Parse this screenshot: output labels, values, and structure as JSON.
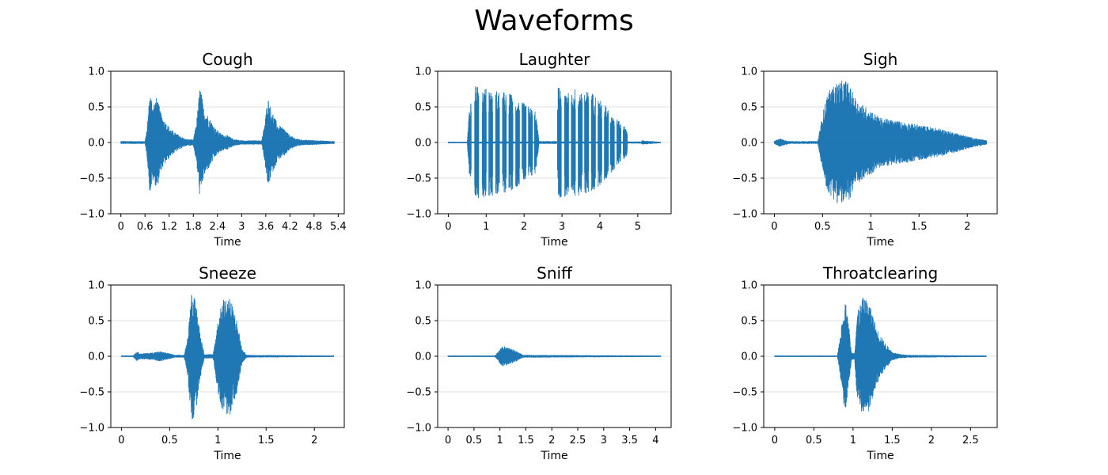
{
  "figure": {
    "title": "Waveforms"
  },
  "colors": {
    "wave": "#1f77b4",
    "grid": "#d9d9d9",
    "frame": "#000000"
  },
  "chart_data": [
    {
      "type": "line",
      "title": "Cough",
      "xlabel": "Time",
      "ylabel": "",
      "duration": 5.3,
      "xlim": [
        -0.25,
        5.55
      ],
      "ylim": [
        -1.0,
        1.0
      ],
      "xticks": [
        0,
        0.6,
        1.2,
        1.8,
        2.4,
        3,
        3.6,
        4.2,
        4.8,
        5.4
      ],
      "xtick_labels": [
        "0",
        "0.6",
        "1.2",
        "1.8",
        "2.4",
        "3",
        "3.6",
        "4.2",
        "4.8",
        "5.4"
      ],
      "yticks": [
        -1.0,
        -0.5,
        0.0,
        0.5,
        1.0
      ],
      "ytick_labels": [
        "−1.0",
        "−0.5",
        "0.0",
        "0.5",
        "1.0"
      ],
      "grid": "y",
      "envelope": [
        [
          0,
          0.02
        ],
        [
          0.6,
          0.02
        ],
        [
          0.65,
          0.2
        ],
        [
          0.72,
          0.72
        ],
        [
          0.8,
          0.55
        ],
        [
          0.9,
          0.65
        ],
        [
          1.0,
          0.4
        ],
        [
          1.1,
          0.3
        ],
        [
          1.25,
          0.18
        ],
        [
          1.4,
          0.12
        ],
        [
          1.6,
          0.05
        ],
        [
          1.8,
          0.04
        ],
        [
          1.88,
          0.3
        ],
        [
          1.97,
          0.82
        ],
        [
          2.05,
          0.5
        ],
        [
          2.2,
          0.35
        ],
        [
          2.35,
          0.2
        ],
        [
          2.5,
          0.12
        ],
        [
          2.65,
          0.1
        ],
        [
          2.8,
          0.05
        ],
        [
          3.0,
          0.03
        ],
        [
          3.5,
          0.03
        ],
        [
          3.58,
          0.3
        ],
        [
          3.65,
          0.65
        ],
        [
          3.75,
          0.45
        ],
        [
          3.9,
          0.25
        ],
        [
          4.05,
          0.2
        ],
        [
          4.2,
          0.1
        ],
        [
          4.35,
          0.06
        ],
        [
          4.5,
          0.04
        ],
        [
          5.3,
          0.02
        ]
      ]
    },
    {
      "type": "line",
      "title": "Laughter",
      "xlabel": "Time",
      "ylabel": "",
      "duration": 5.6,
      "xlim": [
        -0.28,
        5.88
      ],
      "ylim": [
        -1.0,
        1.0
      ],
      "xticks": [
        0,
        1,
        2,
        3,
        4,
        5
      ],
      "xtick_labels": [
        "0",
        "1",
        "2",
        "3",
        "4",
        "5"
      ],
      "yticks": [
        -1.0,
        -0.5,
        0.0,
        0.5,
        1.0
      ],
      "ytick_labels": [
        "−1.0",
        "−0.5",
        "0.0",
        "0.5",
        "1.0"
      ],
      "grid": "y",
      "envelope": [
        [
          0,
          0.01
        ],
        [
          0.5,
          0.01
        ],
        [
          0.55,
          0.45
        ],
        [
          0.65,
          0.8
        ],
        [
          1.1,
          0.75
        ],
        [
          1.6,
          0.7
        ],
        [
          2.0,
          0.55
        ],
        [
          2.3,
          0.45
        ],
        [
          2.4,
          0.02
        ],
        [
          2.85,
          0.02
        ],
        [
          2.9,
          0.78
        ],
        [
          3.4,
          0.75
        ],
        [
          3.8,
          0.7
        ],
        [
          4.2,
          0.5
        ],
        [
          4.5,
          0.3
        ],
        [
          4.7,
          0.2
        ],
        [
          4.85,
          0.04
        ],
        [
          5.6,
          0.01
        ]
      ],
      "bursts": [
        0.55,
        0.75,
        0.95,
        1.12,
        1.3,
        1.48,
        1.65,
        1.83,
        2.0,
        2.17,
        2.33,
        2.93,
        3.12,
        3.3,
        3.48,
        3.65,
        3.83,
        4.0,
        4.17,
        4.33,
        4.5,
        4.67
      ]
    },
    {
      "type": "line",
      "title": "Sigh",
      "xlabel": "Time",
      "ylabel": "",
      "duration": 2.2,
      "xlim": [
        -0.11,
        2.31
      ],
      "ylim": [
        -1.0,
        1.0
      ],
      "xticks": [
        0,
        0.5,
        1,
        1.5,
        2
      ],
      "xtick_labels": [
        "0",
        "0.5",
        "1",
        "1.5",
        "2"
      ],
      "yticks": [
        -1.0,
        -0.5,
        0.0,
        0.5,
        1.0
      ],
      "ytick_labels": [
        "−1.0",
        "−0.5",
        "0.0",
        "0.5",
        "1.0"
      ],
      "grid": "y",
      "envelope": [
        [
          0,
          0.02
        ],
        [
          0.05,
          0.06
        ],
        [
          0.15,
          0.02
        ],
        [
          0.45,
          0.02
        ],
        [
          0.5,
          0.4
        ],
        [
          0.55,
          0.7
        ],
        [
          0.65,
          0.85
        ],
        [
          0.75,
          0.88
        ],
        [
          0.85,
          0.6
        ],
        [
          0.95,
          0.5
        ],
        [
          1.1,
          0.35
        ],
        [
          1.3,
          0.3
        ],
        [
          1.5,
          0.25
        ],
        [
          1.7,
          0.2
        ],
        [
          1.9,
          0.13
        ],
        [
          2.05,
          0.07
        ],
        [
          2.2,
          0.03
        ]
      ]
    },
    {
      "type": "line",
      "title": "Sneeze",
      "xlabel": "Time",
      "ylabel": "",
      "duration": 2.2,
      "xlim": [
        -0.11,
        2.31
      ],
      "ylim": [
        -1.0,
        1.0
      ],
      "xticks": [
        0,
        0.5,
        1,
        1.5,
        2
      ],
      "xtick_labels": [
        "0",
        "0.5",
        "1",
        "1.5",
        "2"
      ],
      "yticks": [
        -1.0,
        -0.5,
        0.0,
        0.5,
        1.0
      ],
      "ytick_labels": [
        "−1.0",
        "−0.5",
        "0.0",
        "0.5",
        "1.0"
      ],
      "grid": "y",
      "envelope": [
        [
          0,
          0.01
        ],
        [
          0.12,
          0.01
        ],
        [
          0.16,
          0.07
        ],
        [
          0.2,
          0.04
        ],
        [
          0.3,
          0.05
        ],
        [
          0.4,
          0.07
        ],
        [
          0.5,
          0.04
        ],
        [
          0.55,
          0.02
        ],
        [
          0.65,
          0.02
        ],
        [
          0.68,
          0.2
        ],
        [
          0.73,
          0.95
        ],
        [
          0.78,
          0.7
        ],
        [
          0.82,
          0.3
        ],
        [
          0.86,
          0.03
        ],
        [
          0.95,
          0.03
        ],
        [
          1.0,
          0.5
        ],
        [
          1.05,
          0.8
        ],
        [
          1.12,
          0.85
        ],
        [
          1.2,
          0.5
        ],
        [
          1.25,
          0.1
        ],
        [
          1.3,
          0.02
        ],
        [
          2.2,
          0.01
        ]
      ]
    },
    {
      "type": "line",
      "title": "Sniff",
      "xlabel": "Time",
      "ylabel": "",
      "duration": 4.1,
      "xlim": [
        -0.2,
        4.3
      ],
      "ylim": [
        -1.0,
        1.0
      ],
      "xticks": [
        0,
        0.5,
        1,
        1.5,
        2,
        2.5,
        3,
        3.5,
        4
      ],
      "xtick_labels": [
        "0",
        "0.5",
        "1",
        "1.5",
        "2",
        "2.5",
        "3",
        "3.5",
        "4"
      ],
      "yticks": [
        -1.0,
        -0.5,
        0.0,
        0.5,
        1.0
      ],
      "ytick_labels": [
        "−1.0",
        "−0.5",
        "0.0",
        "0.5",
        "1.0"
      ],
      "grid": "y",
      "envelope": [
        [
          0,
          0.01
        ],
        [
          0.9,
          0.01
        ],
        [
          0.95,
          0.05
        ],
        [
          1.05,
          0.15
        ],
        [
          1.15,
          0.12
        ],
        [
          1.25,
          0.1
        ],
        [
          1.35,
          0.06
        ],
        [
          1.45,
          0.02
        ],
        [
          4.1,
          0.01
        ]
      ]
    },
    {
      "type": "line",
      "title": "Throatclearing",
      "xlabel": "Time",
      "ylabel": "",
      "duration": 2.7,
      "xlim": [
        -0.14,
        2.84
      ],
      "ylim": [
        -1.0,
        1.0
      ],
      "xticks": [
        0,
        0.5,
        1,
        1.5,
        2,
        2.5
      ],
      "xtick_labels": [
        "0",
        "0.5",
        "1",
        "1.5",
        "2",
        "2.5"
      ],
      "yticks": [
        -1.0,
        -0.5,
        0.0,
        0.5,
        1.0
      ],
      "ytick_labels": [
        "−1.0",
        "−0.5",
        "0.0",
        "0.5",
        "1.0"
      ],
      "grid": "y",
      "envelope": [
        [
          0,
          0.01
        ],
        [
          0.8,
          0.01
        ],
        [
          0.85,
          0.4
        ],
        [
          0.9,
          0.82
        ],
        [
          0.95,
          0.4
        ],
        [
          0.98,
          0.05
        ],
        [
          1.02,
          0.05
        ],
        [
          1.05,
          0.6
        ],
        [
          1.12,
          0.82
        ],
        [
          1.2,
          0.78
        ],
        [
          1.3,
          0.4
        ],
        [
          1.4,
          0.2
        ],
        [
          1.5,
          0.06
        ],
        [
          1.6,
          0.03
        ],
        [
          1.7,
          0.02
        ],
        [
          2.7,
          0.01
        ]
      ]
    }
  ]
}
